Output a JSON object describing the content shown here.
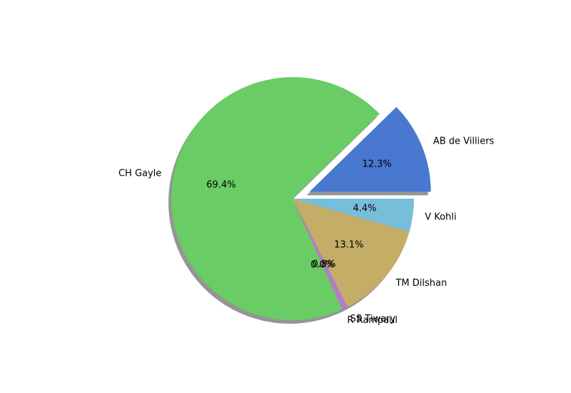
{
  "chart_data": {
    "type": "pie",
    "title": "",
    "start_angle_deg": 0,
    "direction": "counterclockwise",
    "shadow": true,
    "slices": [
      {
        "label": "AB de Villiers",
        "value": 12.3,
        "pct_label": "12.3%",
        "color": "#4878d0",
        "explode": 0.15
      },
      {
        "label": "CH Gayle",
        "value": 69.4,
        "pct_label": "69.4%",
        "color": "#6acc64",
        "explode": 0
      },
      {
        "label": "R Rampaul",
        "value": 0.0,
        "pct_label": "0.0%",
        "color": "#d65f5f",
        "explode": 0
      },
      {
        "label": "SS Tiwary",
        "value": 0.8,
        "pct_label": "0.8%",
        "color": "#b47cc7",
        "explode": 0
      },
      {
        "label": "TM Dilshan",
        "value": 13.1,
        "pct_label": "13.1%",
        "color": "#c4ad66",
        "explode": 0
      },
      {
        "label": "V Kohli",
        "value": 4.4,
        "pct_label": "4.4%",
        "color": "#77bedb",
        "explode": 0
      }
    ]
  }
}
